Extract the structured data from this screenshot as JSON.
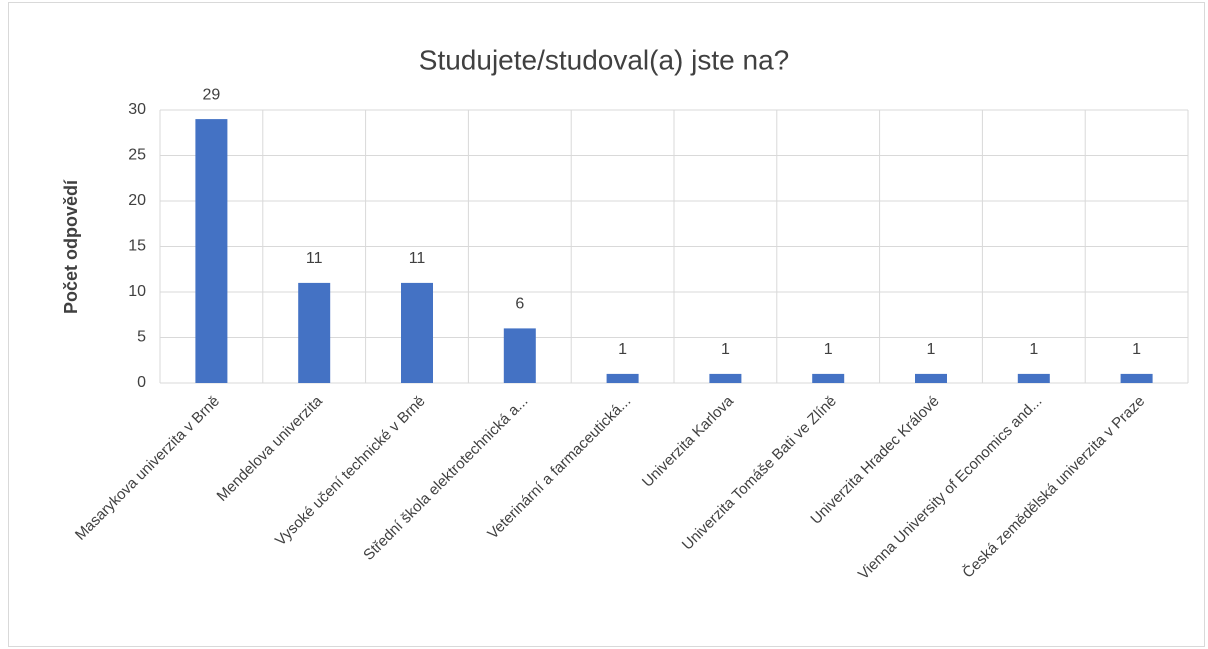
{
  "chart_data": {
    "type": "bar",
    "title": "Studujete/studoval(a) jste na?",
    "y_label": "Počet odpovědí",
    "categories": [
      "Masarykova univerzita v Brně",
      "Mendelova univerzita",
      "Vysoké učení technické v Brně",
      "Střední škola elektrotechnická a...",
      "Veterinární a farmaceutická...",
      "Univerzita Karlova",
      "Univerzita Tomáše Bati ve Zlíně",
      "Univerzita Hradec Králové",
      "Vienna University of Economics and...",
      "Česká zemědělská univerzita v Praze"
    ],
    "values": [
      29,
      11,
      11,
      6,
      1,
      1,
      1,
      1,
      1,
      1
    ],
    "color": "#4472c4",
    "ylim": [
      0,
      30
    ],
    "yticks": [
      0,
      5,
      10,
      15,
      20,
      25,
      30
    ],
    "grid": true
  }
}
